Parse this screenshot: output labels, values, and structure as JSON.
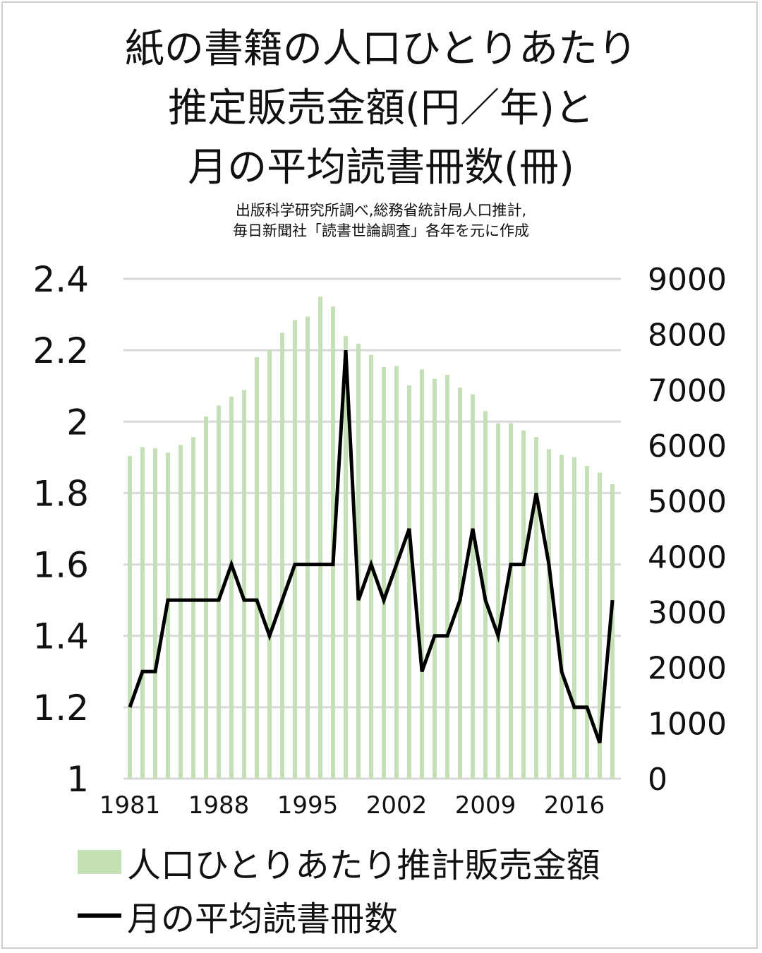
{
  "chart_data": {
    "type": "bar+line",
    "title": [
      "紙の書籍の人口ひとりあたり",
      "推定販売金額(円／年)と",
      "月の平均読書冊数(冊)"
    ],
    "subtitle": [
      "出版科学研究所調べ,総務省統計局人口推計,",
      "毎日新聞社「読書世論調査」各年を元に作成"
    ],
    "x": [
      1981,
      1982,
      1983,
      1984,
      1985,
      1986,
      1987,
      1988,
      1989,
      1990,
      1991,
      1992,
      1993,
      1994,
      1995,
      1996,
      1997,
      1998,
      1999,
      2000,
      2001,
      2002,
      2003,
      2004,
      2005,
      2006,
      2007,
      2008,
      2009,
      2010,
      2011,
      2012,
      2013,
      2014,
      2015,
      2016,
      2017,
      2018,
      2019
    ],
    "x_tick_labels": [
      "1981",
      "1988",
      "1995",
      "2002",
      "2009",
      "2016"
    ],
    "left_axis": {
      "ylim": [
        1,
        2.4
      ],
      "ticks": [
        "1",
        "1.2",
        "1.4",
        "1.6",
        "1.8",
        "2",
        "2.2",
        "2.4"
      ]
    },
    "right_axis": {
      "ylim": [
        0,
        9000
      ],
      "ticks": [
        "0",
        "1000",
        "2000",
        "3000",
        "4000",
        "5000",
        "6000",
        "7000",
        "8000",
        "9000"
      ]
    },
    "grid": true,
    "legend_placement": "bottom",
    "series": [
      {
        "name": "人口ひとりあたり推計販売金額",
        "type": "bar",
        "axis": "right",
        "color": "#c5e0b4",
        "values": [
          5810,
          5970,
          5950,
          5870,
          6010,
          6150,
          6520,
          6720,
          6880,
          7000,
          7590,
          7710,
          8030,
          8260,
          8320,
          8680,
          8500,
          7970,
          7830,
          7630,
          7410,
          7430,
          7080,
          7370,
          7200,
          7270,
          7040,
          6920,
          6620,
          6400,
          6400,
          6270,
          6150,
          5930,
          5830,
          5790,
          5630,
          5510,
          5300
        ]
      },
      {
        "name": "月の平均読書冊数",
        "type": "line",
        "axis": "left",
        "color": "#000000",
        "values": [
          1.2,
          1.3,
          1.3,
          1.5,
          1.5,
          1.5,
          1.5,
          1.5,
          1.6,
          1.5,
          1.5,
          1.4,
          1.5,
          1.6,
          1.6,
          1.6,
          1.6,
          2.2,
          1.5,
          1.6,
          1.5,
          1.6,
          1.7,
          1.3,
          1.4,
          1.4,
          1.5,
          1.7,
          1.5,
          1.4,
          1.6,
          1.6,
          1.8,
          1.6,
          1.3,
          1.2,
          1.2,
          1.1,
          1.5
        ]
      }
    ]
  }
}
